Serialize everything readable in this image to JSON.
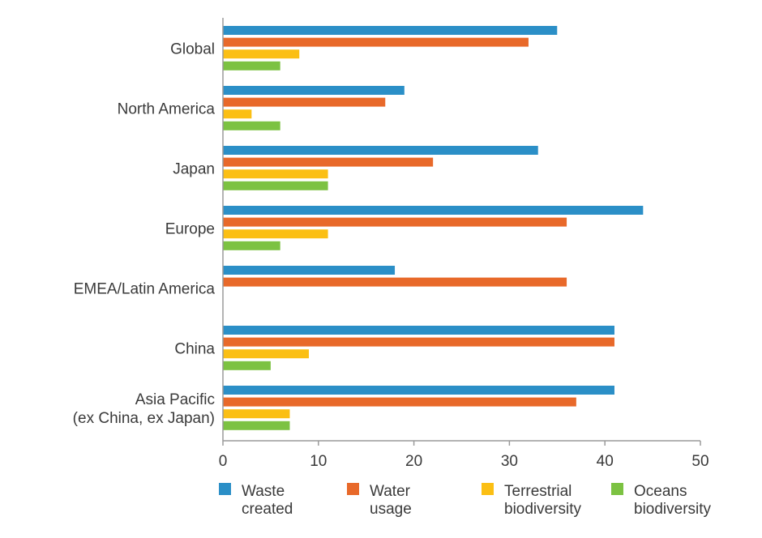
{
  "chart_data": {
    "type": "bar",
    "orientation": "horizontal",
    "title": "",
    "xlabel": "",
    "ylabel": "",
    "categories": [
      [
        "Global"
      ],
      [
        "North America"
      ],
      [
        "Japan"
      ],
      [
        "Europe"
      ],
      [
        "EMEA/Latin America"
      ],
      [
        "China"
      ],
      [
        "Asia Pacific",
        "(ex China, ex Japan)"
      ]
    ],
    "series": [
      {
        "name": [
          "Waste",
          "created"
        ],
        "color": "#2b8fc7",
        "values": [
          35,
          19,
          33,
          44,
          18,
          41,
          41
        ]
      },
      {
        "name": [
          "Water",
          "usage"
        ],
        "color": "#e8692a",
        "values": [
          32,
          17,
          22,
          36,
          36,
          41,
          37
        ]
      },
      {
        "name": [
          "Terrestrial",
          "biodiversity"
        ],
        "color": "#fbbf14",
        "values": [
          8,
          3,
          11,
          11,
          0,
          9,
          7
        ]
      },
      {
        "name": [
          "Oceans",
          "biodiversity"
        ],
        "color": "#7cc242",
        "values": [
          6,
          6,
          11,
          6,
          0,
          5,
          7
        ]
      }
    ],
    "xlim": [
      0,
      50
    ],
    "xticks": [
      0,
      10,
      20,
      30,
      40,
      50
    ],
    "grid": false,
    "legend_position": "bottom"
  }
}
